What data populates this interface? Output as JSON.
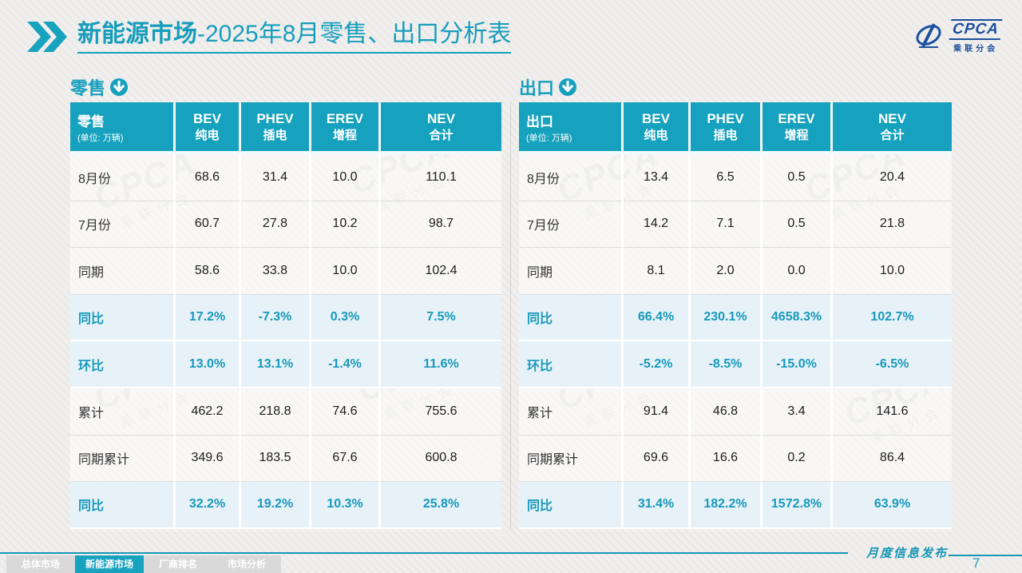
{
  "title": {
    "highlight": "新能源市场",
    "rest": "-2025年8月零售、出口分析表"
  },
  "logo": {
    "name": "CPCA",
    "subtitle": "乘联分会"
  },
  "watermark": {
    "text": "CPCA",
    "subtext": "乘联分会"
  },
  "colors": {
    "teal": "#16A2BE",
    "highlight_row_bg": "#E7F2F8",
    "percent_text": "#1899BB",
    "inactive_tab": "#D9D9D9"
  },
  "tables": [
    {
      "section_label": "零售",
      "header": {
        "title": "零售",
        "unit": "(单位: 万辆)",
        "columns": [
          {
            "en": "BEV",
            "cn": "纯电"
          },
          {
            "en": "PHEV",
            "cn": "插电"
          },
          {
            "en": "EREV",
            "cn": "增程"
          },
          {
            "en": "NEV",
            "cn": "合计"
          }
        ]
      },
      "rows": [
        {
          "label": "8月份",
          "values": [
            "68.6",
            "31.4",
            "10.0",
            "110.1"
          ],
          "highlight": false
        },
        {
          "label": "7月份",
          "values": [
            "60.7",
            "27.8",
            "10.2",
            "98.7"
          ],
          "highlight": false
        },
        {
          "label": "同期",
          "values": [
            "58.6",
            "33.8",
            "10.0",
            "102.4"
          ],
          "highlight": false
        },
        {
          "label": "同比",
          "values": [
            "17.2%",
            "-7.3%",
            "0.3%",
            "7.5%"
          ],
          "highlight": true
        },
        {
          "label": "环比",
          "values": [
            "13.0%",
            "13.1%",
            "-1.4%",
            "11.6%"
          ],
          "highlight": true
        },
        {
          "label": "累计",
          "values": [
            "462.2",
            "218.8",
            "74.6",
            "755.6"
          ],
          "highlight": false
        },
        {
          "label": "同期累计",
          "values": [
            "349.6",
            "183.5",
            "67.6",
            "600.8"
          ],
          "highlight": false
        },
        {
          "label": "同比",
          "values": [
            "32.2%",
            "19.2%",
            "10.3%",
            "25.8%"
          ],
          "highlight": true
        }
      ]
    },
    {
      "section_label": "出口",
      "header": {
        "title": "出口",
        "unit": "(单位: 万辆)",
        "columns": [
          {
            "en": "BEV",
            "cn": "纯电"
          },
          {
            "en": "PHEV",
            "cn": "插电"
          },
          {
            "en": "EREV",
            "cn": "增程"
          },
          {
            "en": "NEV",
            "cn": "合计"
          }
        ]
      },
      "rows": [
        {
          "label": "8月份",
          "values": [
            "13.4",
            "6.5",
            "0.5",
            "20.4"
          ],
          "highlight": false
        },
        {
          "label": "7月份",
          "values": [
            "14.2",
            "7.1",
            "0.5",
            "21.8"
          ],
          "highlight": false
        },
        {
          "label": "同期",
          "values": [
            "8.1",
            "2.0",
            "0.0",
            "10.0"
          ],
          "highlight": false
        },
        {
          "label": "同比",
          "values": [
            "66.4%",
            "230.1%",
            "4658.3%",
            "102.7%"
          ],
          "highlight": true
        },
        {
          "label": "环比",
          "values": [
            "-5.2%",
            "-8.5%",
            "-15.0%",
            "-6.5%"
          ],
          "highlight": true
        },
        {
          "label": "累计",
          "values": [
            "91.4",
            "46.8",
            "3.4",
            "141.6"
          ],
          "highlight": false
        },
        {
          "label": "同期累计",
          "values": [
            "69.6",
            "16.6",
            "0.2",
            "86.4"
          ],
          "highlight": false
        },
        {
          "label": "同比",
          "values": [
            "31.4%",
            "182.2%",
            "1572.8%",
            "63.9%"
          ],
          "highlight": true
        }
      ]
    }
  ],
  "footer": {
    "tabs": [
      {
        "label": "总体市场",
        "active": false
      },
      {
        "label": "新能源市场",
        "active": true
      },
      {
        "label": "厂商排名",
        "active": false
      },
      {
        "label": "市场分析",
        "active": false
      }
    ],
    "publish_label": "月度信息发布",
    "page_number": "7"
  }
}
